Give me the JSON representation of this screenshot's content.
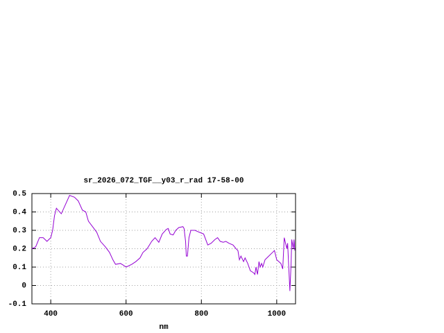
{
  "chart_data": {
    "type": "line",
    "title": "sr_2026_072_TGF__y03_r_rad 17-58-00",
    "xlabel": "nm",
    "xlim": [
      350,
      1050
    ],
    "xticks": [
      400,
      600,
      800,
      1000
    ],
    "ylim": [
      -0.1,
      0.5
    ],
    "yticks": [
      -0.1,
      0,
      0.1,
      0.2,
      0.3,
      0.4,
      0.5
    ],
    "grid": true,
    "series": [
      {
        "color": "#9400d3",
        "x": [
          350,
          360,
          370,
          380,
          390,
          400,
          405,
          410,
          415,
          428,
          450,
          463,
          473,
          484,
          493,
          500,
          511,
          522,
          532,
          545,
          556,
          565,
          572,
          585,
          593,
          600,
          615,
          626,
          637,
          645,
          656,
          668,
          677,
          687,
          696,
          707,
          712,
          717,
          725,
          732,
          740,
          751,
          754,
          758,
          760,
          763,
          767,
          772,
          783,
          794,
          806,
          817,
          826,
          836,
          843,
          850,
          858,
          865,
          873,
          884,
          892,
          897,
          901,
          905,
          912,
          916,
          923,
          930,
          938,
          942,
          945,
          949,
          953,
          956,
          960,
          963,
          969,
          974,
          989,
          994,
          1000,
          1011,
          1016,
          1020,
          1027,
          1029,
          1035,
          1038,
          1040,
          1044,
          1046,
          1048
        ],
        "values": [
          0.2,
          0.21,
          0.26,
          0.26,
          0.24,
          0.26,
          0.3,
          0.38,
          0.42,
          0.39,
          0.49,
          0.48,
          0.46,
          0.41,
          0.4,
          0.35,
          0.32,
          0.29,
          0.24,
          0.21,
          0.18,
          0.14,
          0.115,
          0.12,
          0.11,
          0.1,
          0.115,
          0.13,
          0.15,
          0.18,
          0.2,
          0.24,
          0.26,
          0.235,
          0.28,
          0.305,
          0.31,
          0.28,
          0.275,
          0.3,
          0.315,
          0.32,
          0.31,
          0.24,
          0.16,
          0.16,
          0.26,
          0.3,
          0.3,
          0.29,
          0.28,
          0.22,
          0.23,
          0.25,
          0.26,
          0.24,
          0.235,
          0.24,
          0.23,
          0.22,
          0.2,
          0.19,
          0.14,
          0.16,
          0.13,
          0.15,
          0.12,
          0.08,
          0.07,
          0.06,
          0.1,
          0.06,
          0.13,
          0.1,
          0.12,
          0.1,
          0.14,
          0.15,
          0.18,
          0.19,
          0.14,
          0.12,
          0.09,
          0.26,
          0.2,
          0.23,
          -0.03,
          0.11,
          0.25,
          0.2,
          0.25,
          0.19
        ]
      }
    ]
  }
}
